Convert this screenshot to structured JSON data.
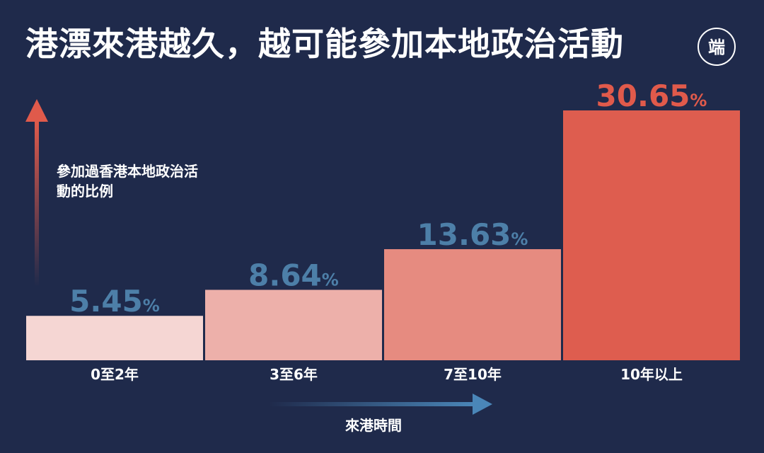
{
  "header": {
    "title": "港漂來港越久，越可能參加本地政治活動",
    "logo_text": "端"
  },
  "colors": {
    "background": "#1f2a4b",
    "value_blue": "#4d7fa8",
    "value_red": "#e05a4b",
    "arrow_red": "#e05a4b",
    "arrow_blue": "#4a86b8",
    "bar_fills": [
      "#f5d6d3",
      "#edb0aa",
      "#e68b80",
      "#de5d4f"
    ]
  },
  "chart_data": {
    "type": "bar",
    "title": "港漂來港越久，越可能參加本地政治活動",
    "ylabel": "參加過香港本地政治活動的比例",
    "xlabel": "來港時間",
    "categories": [
      "0至2年",
      "3至6年",
      "7至10年",
      "10年以上"
    ],
    "values": [
      5.45,
      8.64,
      13.63,
      30.65
    ],
    "value_labels": [
      "5.45",
      "8.64",
      "13.63",
      "30.65"
    ],
    "unit": "%",
    "ylim": [
      0,
      30.65
    ],
    "grid": false,
    "legend": "none"
  }
}
